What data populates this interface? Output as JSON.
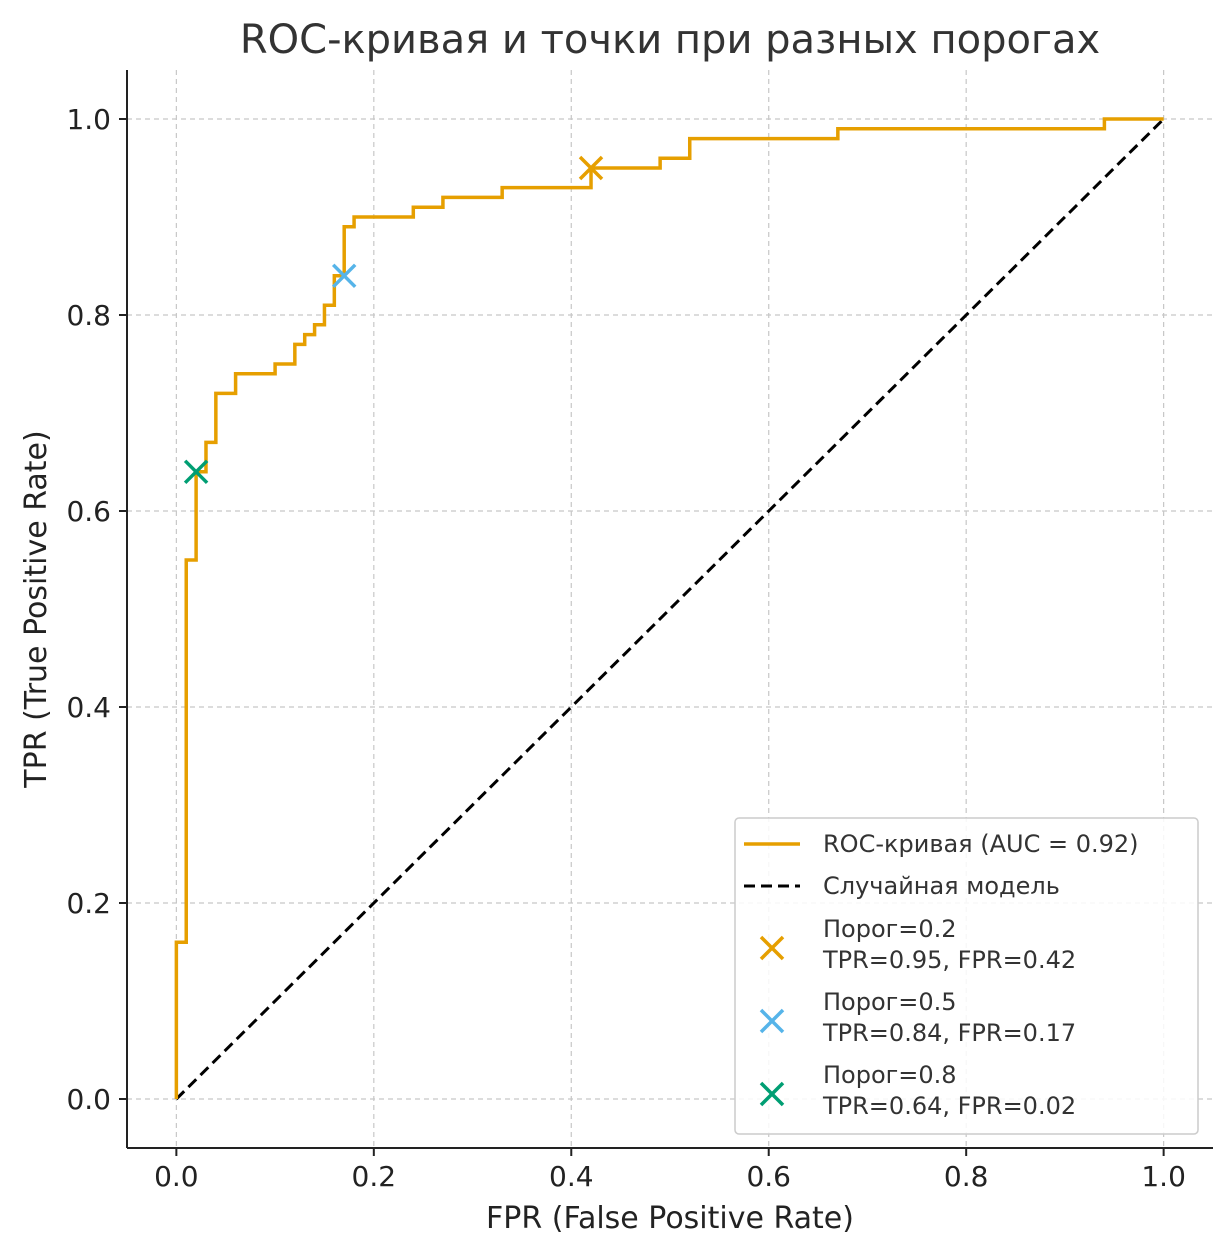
{
  "chart_data": {
    "type": "line",
    "title": "ROC-кривая и точки при разных порогах",
    "xlabel": "FPR (False Positive Rate)",
    "ylabel": "TPR (True Positive Rate)",
    "xlim": [
      -0.05,
      1.05
    ],
    "ylim": [
      -0.05,
      1.05
    ],
    "grid": true,
    "legend_position": "bottom-right",
    "xticks": [
      0.0,
      0.2,
      0.4,
      0.6,
      0.8,
      1.0
    ],
    "yticks": [
      0.0,
      0.2,
      0.4,
      0.6,
      0.8,
      1.0
    ],
    "xtick_labels": [
      "0.0",
      "0.2",
      "0.4",
      "0.6",
      "0.8",
      "1.0"
    ],
    "ytick_labels": [
      "0.0",
      "0.2",
      "0.4",
      "0.6",
      "0.8",
      "1.0"
    ],
    "series": [
      {
        "name": "ROC-кривая (AUC = 0.92)",
        "style": "step",
        "color": "#E69F00",
        "points": [
          [
            0.0,
            0.0
          ],
          [
            0.0,
            0.16
          ],
          [
            0.01,
            0.16
          ],
          [
            0.01,
            0.55
          ],
          [
            0.02,
            0.55
          ],
          [
            0.02,
            0.64
          ],
          [
            0.03,
            0.64
          ],
          [
            0.03,
            0.67
          ],
          [
            0.04,
            0.67
          ],
          [
            0.04,
            0.72
          ],
          [
            0.06,
            0.72
          ],
          [
            0.06,
            0.74
          ],
          [
            0.1,
            0.74
          ],
          [
            0.1,
            0.75
          ],
          [
            0.12,
            0.75
          ],
          [
            0.12,
            0.77
          ],
          [
            0.13,
            0.77
          ],
          [
            0.13,
            0.78
          ],
          [
            0.14,
            0.78
          ],
          [
            0.14,
            0.79
          ],
          [
            0.15,
            0.79
          ],
          [
            0.15,
            0.81
          ],
          [
            0.16,
            0.81
          ],
          [
            0.16,
            0.84
          ],
          [
            0.17,
            0.84
          ],
          [
            0.17,
            0.89
          ],
          [
            0.18,
            0.89
          ],
          [
            0.18,
            0.9
          ],
          [
            0.24,
            0.9
          ],
          [
            0.24,
            0.91
          ],
          [
            0.27,
            0.91
          ],
          [
            0.27,
            0.92
          ],
          [
            0.33,
            0.92
          ],
          [
            0.33,
            0.93
          ],
          [
            0.42,
            0.93
          ],
          [
            0.42,
            0.95
          ],
          [
            0.49,
            0.95
          ],
          [
            0.49,
            0.96
          ],
          [
            0.52,
            0.96
          ],
          [
            0.52,
            0.98
          ],
          [
            0.67,
            0.98
          ],
          [
            0.67,
            0.99
          ],
          [
            0.94,
            0.99
          ],
          [
            0.94,
            1.0
          ],
          [
            1.0,
            1.0
          ]
        ]
      },
      {
        "name": "Случайная модель",
        "style": "dashed",
        "color": "#000000",
        "points": [
          [
            0.0,
            0.0
          ],
          [
            1.0,
            1.0
          ]
        ]
      }
    ],
    "markers": [
      {
        "name": "Порог=0.2",
        "detail": "TPR=0.95, FPR=0.42",
        "fpr": 0.42,
        "tpr": 0.95,
        "color": "#E69F00"
      },
      {
        "name": "Порог=0.5",
        "detail": "TPR=0.84, FPR=0.17",
        "fpr": 0.17,
        "tpr": 0.84,
        "color": "#56B4E9"
      },
      {
        "name": "Порог=0.8",
        "detail": "TPR=0.64, FPR=0.02",
        "fpr": 0.02,
        "tpr": 0.64,
        "color": "#009E73"
      }
    ]
  }
}
